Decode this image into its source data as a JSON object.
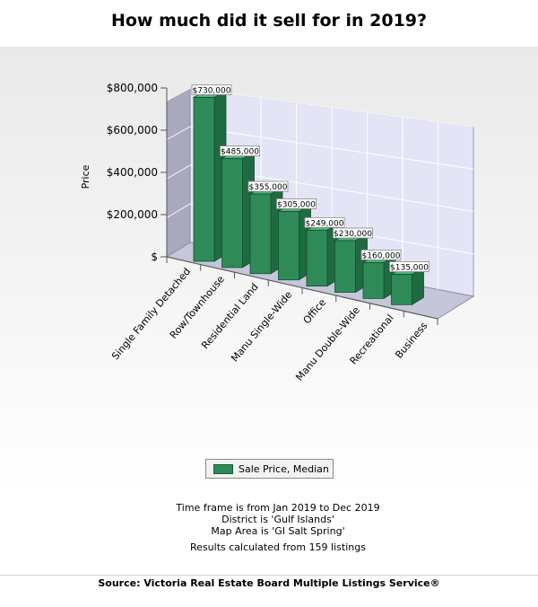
{
  "page": {
    "title": "How much did it sell for in 2019?",
    "notes": [
      "Time frame is from Jan 2019 to Dec 2019",
      "District is 'Gulf Islands'",
      "Map Area is 'GI Salt Spring'"
    ],
    "results": "Results calculated from 159 listings",
    "source": "Source: Victoria Real Estate Board Multiple Listings Service®"
  },
  "colors": {
    "bar_front": "#2e8b57",
    "bar_top": "#4fb37b",
    "bar_side": "#1f6b41",
    "back_wall": "#e4e4f7",
    "left_wall": "#a9a9bd",
    "floor": "#c6c6da"
  },
  "chart_data": {
    "type": "bar",
    "title": "How much did it sell for in 2019?",
    "ylabel": "Price",
    "xlabel": "",
    "ylim": [
      0,
      800000
    ],
    "yticks": [
      0,
      200000,
      400000,
      600000,
      800000
    ],
    "ytick_labels": [
      "$",
      "$200,000",
      "$400,000",
      "$600,000",
      "$800,000"
    ],
    "categories": [
      "Single Family Detached",
      "Row/Townhouse",
      "Residential Land",
      "Manu Single-Wide",
      "Office",
      "Manu Double-Wide",
      "Recreational",
      "Business"
    ],
    "series": [
      {
        "name": "Sale Price, Median",
        "values": [
          730000,
          485000,
          355000,
          305000,
          249000,
          230000,
          160000,
          135000
        ],
        "labels": [
          "$730,000",
          "$485,000",
          "$355,000",
          "$305,000",
          "$249,000",
          "$230,000",
          "$160,000",
          "$135,000"
        ]
      }
    ],
    "legend": "bottom",
    "grid": true,
    "three_d": true
  }
}
